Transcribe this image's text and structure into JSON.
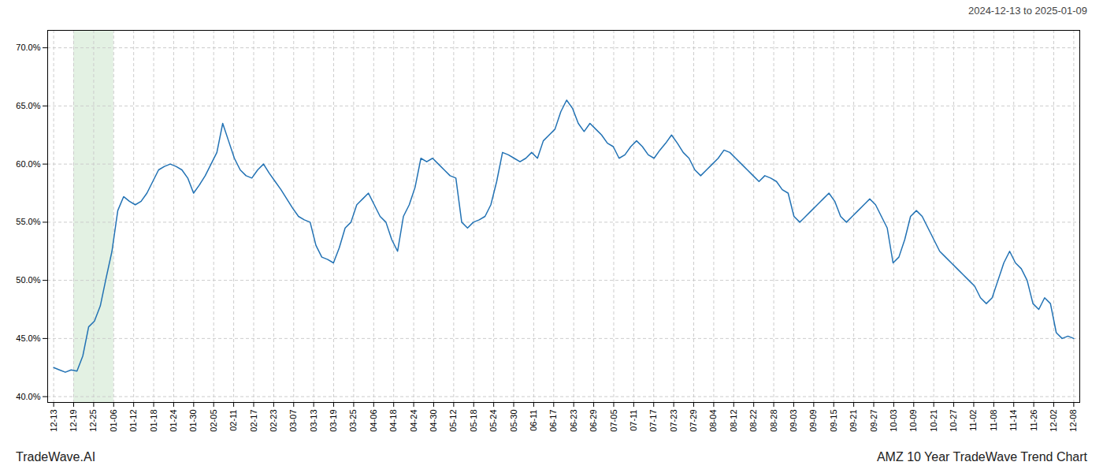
{
  "chart_data": {
    "type": "line",
    "title": "2024-12-13 to 2025-01-09",
    "annotations": [
      "TradeWave.AI",
      "AMZ 10 Year TradeWave Trend Chart"
    ],
    "color": "#2272b4",
    "grid": true,
    "highlight": {
      "x": [
        1,
        3
      ],
      "color": "#d0e8d0"
    },
    "xlim": [
      -0.3,
      51.3
    ],
    "xticks": [
      {
        "value": 0,
        "label": "12-13"
      },
      {
        "value": 1,
        "label": "12-19"
      },
      {
        "value": 2,
        "label": "12-25"
      },
      {
        "value": 3,
        "label": "01-06"
      },
      {
        "value": 4,
        "label": "01-12"
      },
      {
        "value": 5,
        "label": "01-18"
      },
      {
        "value": 6,
        "label": "01-24"
      },
      {
        "value": 7,
        "label": "01-30"
      },
      {
        "value": 8,
        "label": "02-05"
      },
      {
        "value": 9,
        "label": "02-11"
      },
      {
        "value": 10,
        "label": "02-17"
      },
      {
        "value": 11,
        "label": "02-23"
      },
      {
        "value": 12,
        "label": "03-07"
      },
      {
        "value": 13,
        "label": "03-13"
      },
      {
        "value": 14,
        "label": "03-19"
      },
      {
        "value": 15,
        "label": "03-25"
      },
      {
        "value": 16,
        "label": "04-06"
      },
      {
        "value": 17,
        "label": "04-18"
      },
      {
        "value": 18,
        "label": "04-24"
      },
      {
        "value": 19,
        "label": "04-30"
      },
      {
        "value": 20,
        "label": "05-12"
      },
      {
        "value": 21,
        "label": "05-18"
      },
      {
        "value": 22,
        "label": "05-24"
      },
      {
        "value": 23,
        "label": "05-30"
      },
      {
        "value": 24,
        "label": "06-11"
      },
      {
        "value": 25,
        "label": "06-17"
      },
      {
        "value": 26,
        "label": "06-23"
      },
      {
        "value": 27,
        "label": "06-29"
      },
      {
        "value": 28,
        "label": "07-05"
      },
      {
        "value": 29,
        "label": "07-11"
      },
      {
        "value": 30,
        "label": "07-17"
      },
      {
        "value": 31,
        "label": "07-23"
      },
      {
        "value": 32,
        "label": "07-29"
      },
      {
        "value": 33,
        "label": "08-04"
      },
      {
        "value": 34,
        "label": "08-12"
      },
      {
        "value": 35,
        "label": "08-22"
      },
      {
        "value": 36,
        "label": "08-28"
      },
      {
        "value": 37,
        "label": "09-03"
      },
      {
        "value": 38,
        "label": "09-09"
      },
      {
        "value": 39,
        "label": "09-15"
      },
      {
        "value": 40,
        "label": "09-21"
      },
      {
        "value": 41,
        "label": "09-27"
      },
      {
        "value": 42,
        "label": "10-03"
      },
      {
        "value": 43,
        "label": "10-09"
      },
      {
        "value": 44,
        "label": "10-21"
      },
      {
        "value": 45,
        "label": "10-27"
      },
      {
        "value": 46,
        "label": "11-02"
      },
      {
        "value": 47,
        "label": "11-08"
      },
      {
        "value": 48,
        "label": "11-14"
      },
      {
        "value": 49,
        "label": "11-26"
      },
      {
        "value": 50,
        "label": "12-02"
      },
      {
        "value": 51,
        "label": "12-08"
      }
    ],
    "ylim": [
      39.5,
      71.5
    ],
    "yticks": [
      {
        "value": 40.0,
        "label": "40.0%"
      },
      {
        "value": 45.0,
        "label": "45.0%"
      },
      {
        "value": 50.0,
        "label": "50.0%"
      },
      {
        "value": 55.0,
        "label": "55.0%"
      },
      {
        "value": 60.0,
        "label": "60.0%"
      },
      {
        "value": 65.0,
        "label": "65.0%"
      },
      {
        "value": 70.0,
        "label": "70.0%"
      }
    ],
    "x": [
      0,
      0.291429,
      0.582857,
      0.874286,
      1.165714,
      1.457143,
      1.748571,
      2.04,
      2.331429,
      2.622857,
      2.914286,
      3.205714,
      3.497143,
      3.788571,
      4.08,
      4.371429,
      4.662857,
      4.954286,
      5.245714,
      5.537143,
      5.828571,
      6.12,
      6.411429,
      6.702857,
      6.994286,
      7.285714,
      7.577143,
      7.868571,
      8.16,
      8.451429,
      8.742857,
      9.034286,
      9.325714,
      9.617143,
      9.908571,
      10.2,
      10.491429,
      10.782857,
      11.074286,
      11.365714,
      11.657143,
      11.948571,
      12.24,
      12.531429,
      12.822857,
      13.114286,
      13.405714,
      13.697143,
      13.988571,
      14.28,
      14.571429,
      14.862857,
      15.154286,
      15.445714,
      15.737143,
      16.028571,
      16.32,
      16.611429,
      16.902857,
      17.194286,
      17.485714,
      17.777143,
      18.068571,
      18.36,
      18.651429,
      18.942857,
      19.234286,
      19.525714,
      19.817143,
      20.108571,
      20.4,
      20.691429,
      20.982857,
      21.274286,
      21.565714,
      21.857143,
      22.148571,
      22.44,
      22.731429,
      23.022857,
      23.314286,
      23.605714,
      23.897143,
      24.188571,
      24.48,
      24.771429,
      25.062857,
      25.354286,
      25.645714,
      25.937143,
      26.228571,
      26.52,
      26.811429,
      27.102857,
      27.394286,
      27.685714,
      27.977143,
      28.268571,
      28.56,
      28.851429,
      29.142857,
      29.434286,
      29.725714,
      30.017143,
      30.308571,
      30.6,
      30.891429,
      31.182857,
      31.474286,
      31.765714,
      32.057143,
      32.348571,
      32.64,
      32.931429,
      33.222857,
      33.514286,
      33.805714,
      34.097143,
      34.388571,
      34.68,
      34.971429,
      35.262857,
      35.554286,
      35.845714,
      36.137143,
      36.428571,
      36.72,
      37.011429,
      37.302857,
      37.594286,
      37.885714,
      38.177143,
      38.468571,
      38.76,
      39.051429,
      39.342857,
      39.634286,
      39.925714,
      40.217143,
      40.508571,
      40.8,
      41.091429,
      41.382857,
      41.674286,
      41.965714,
      42.257143,
      42.548571,
      42.84,
      43.131429,
      43.422857,
      43.714286,
      44.005714,
      44.297143,
      44.588571,
      44.88,
      45.171429,
      45.462857,
      45.754286,
      46.045714,
      46.337143,
      46.628571,
      46.92,
      47.211429,
      47.502857,
      47.794286,
      48.085714,
      48.377143,
      48.668571,
      48.96,
      49.251429,
      49.542857,
      49.834286,
      50.125714,
      50.417143,
      50.708571,
      51
    ],
    "values": [
      42.5,
      42.3,
      42.1,
      42.3,
      42.2,
      43.5,
      46.0,
      46.5,
      47.8,
      50.2,
      52.5,
      56.0,
      57.2,
      56.8,
      56.5,
      56.8,
      57.5,
      58.5,
      59.5,
      59.8,
      60.0,
      59.8,
      59.5,
      58.8,
      57.5,
      58.2,
      59.0,
      60.0,
      61.0,
      63.5,
      62.0,
      60.5,
      59.5,
      59.0,
      58.8,
      59.5,
      60.0,
      59.2,
      58.5,
      57.8,
      57.0,
      56.2,
      55.5,
      55.2,
      55.0,
      53.0,
      52.0,
      51.8,
      51.5,
      52.8,
      54.5,
      55.0,
      56.5,
      57.0,
      57.5,
      56.5,
      55.5,
      55.0,
      53.5,
      52.5,
      55.5,
      56.5,
      58.0,
      60.5,
      60.2,
      60.5,
      60.0,
      59.5,
      59.0,
      58.8,
      55.0,
      54.5,
      55.0,
      55.2,
      55.5,
      56.5,
      58.5,
      61.0,
      60.8,
      60.5,
      60.2,
      60.5,
      61.0,
      60.5,
      62.0,
      62.5,
      63.0,
      64.5,
      65.5,
      64.8,
      63.5,
      62.8,
      63.5,
      63.0,
      62.5,
      61.8,
      61.5,
      60.5,
      60.8,
      61.5,
      62.0,
      61.5,
      60.8,
      60.5,
      61.2,
      61.8,
      62.5,
      61.8,
      61.0,
      60.5,
      59.5,
      59.0,
      59.5,
      60.0,
      60.5,
      61.2,
      61.0,
      60.5,
      60.0,
      59.5,
      59.0,
      58.5,
      59.0,
      58.8,
      58.5,
      57.8,
      57.5,
      55.5,
      55.0,
      55.5,
      56.0,
      56.5,
      57.0,
      57.5,
      56.8,
      55.5,
      55.0,
      55.5,
      56.0,
      56.5,
      57.0,
      56.5,
      55.5,
      54.5,
      51.5,
      52.0,
      53.5,
      55.5,
      56.0,
      55.5,
      54.5,
      53.5,
      52.5,
      52.0,
      51.5,
      51.0,
      50.5,
      50.0,
      49.5,
      48.5,
      48.0,
      48.5,
      50.0,
      51.5,
      52.5,
      51.5,
      51.0,
      50.0,
      48.0,
      47.5,
      48.5,
      48.0,
      45.5,
      45.0,
      45.2,
      45.0
    ]
  }
}
